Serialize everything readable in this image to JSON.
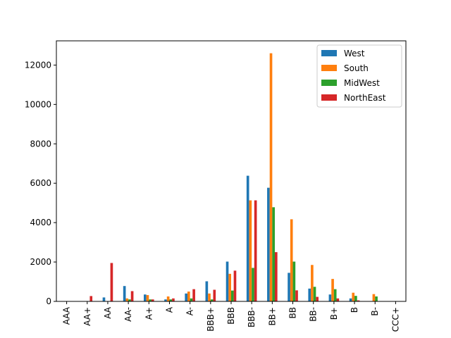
{
  "chart_data": {
    "type": "bar",
    "categories": [
      "AAA",
      "AA+",
      "AA",
      "AA-",
      "A+",
      "A",
      "A-",
      "BBB+",
      "BBB",
      "BBB-",
      "BB+",
      "BB",
      "BB-",
      "B+",
      "B",
      "B-",
      "CCC+"
    ],
    "series": [
      {
        "name": "West",
        "color": "#1f77b4",
        "values": [
          0,
          0,
          200,
          780,
          350,
          100,
          400,
          1020,
          2020,
          6380,
          5770,
          1450,
          650,
          350,
          150,
          0,
          0
        ]
      },
      {
        "name": "South",
        "color": "#ff7f0e",
        "values": [
          0,
          0,
          0,
          150,
          320,
          250,
          500,
          400,
          1400,
          5130,
          12600,
          4170,
          1850,
          1140,
          440,
          370,
          0
        ]
      },
      {
        "name": "MidWest",
        "color": "#2ca02c",
        "values": [
          0,
          0,
          0,
          100,
          100,
          100,
          150,
          100,
          550,
          1700,
          4780,
          2020,
          740,
          620,
          280,
          250,
          0
        ]
      },
      {
        "name": "NorthEast",
        "color": "#d62728",
        "values": [
          0,
          270,
          1950,
          520,
          100,
          150,
          620,
          590,
          1560,
          5130,
          2500,
          560,
          230,
          150,
          50,
          0,
          0
        ]
      }
    ],
    "y_ticks": [
      0,
      2000,
      4000,
      6000,
      8000,
      10000,
      12000
    ],
    "ylim": [
      0,
      13230
    ],
    "xlabel": "",
    "ylabel": "",
    "title": "",
    "grid": false,
    "legend_position": "top-right"
  }
}
